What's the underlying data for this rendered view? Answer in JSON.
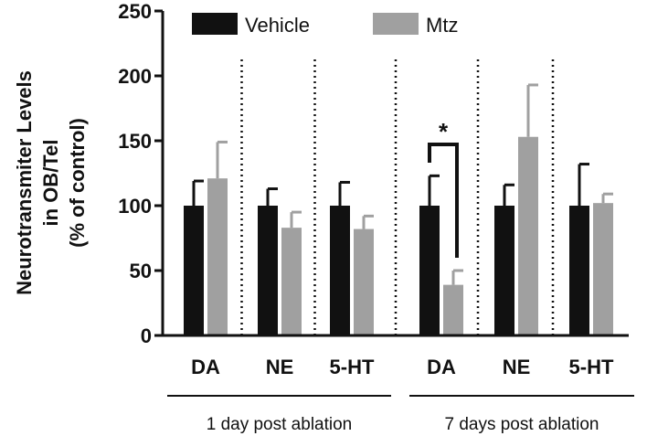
{
  "chart_data": {
    "type": "bar",
    "ylabel_lines": [
      "Neurotransmiter Levels",
      "in OB/Tel",
      "(% of control)"
    ],
    "ylim": [
      0,
      250
    ],
    "yticks": [
      0,
      50,
      100,
      150,
      200,
      250
    ],
    "categories": [
      "DA",
      "NE",
      "5-HT",
      "DA",
      "NE",
      "5-HT"
    ],
    "groups": [
      {
        "label": "1 day post ablation",
        "categories": [
          0,
          1,
          2
        ]
      },
      {
        "label": "7 days post ablation",
        "categories": [
          3,
          4,
          5
        ]
      }
    ],
    "series": [
      {
        "name": "Vehicle",
        "color": "#111111",
        "values": [
          100,
          100,
          100,
          100,
          100,
          100
        ],
        "errors": [
          19,
          13,
          18,
          23,
          16,
          32
        ]
      },
      {
        "name": "Mtz",
        "color": "#a0a0a0",
        "values": [
          121,
          83,
          82,
          39,
          153,
          102
        ],
        "errors": [
          28,
          12,
          10,
          11,
          40,
          7
        ]
      }
    ],
    "legend_position": "top",
    "significance": [
      {
        "category": 3,
        "label": "*"
      }
    ],
    "grid": false
  }
}
